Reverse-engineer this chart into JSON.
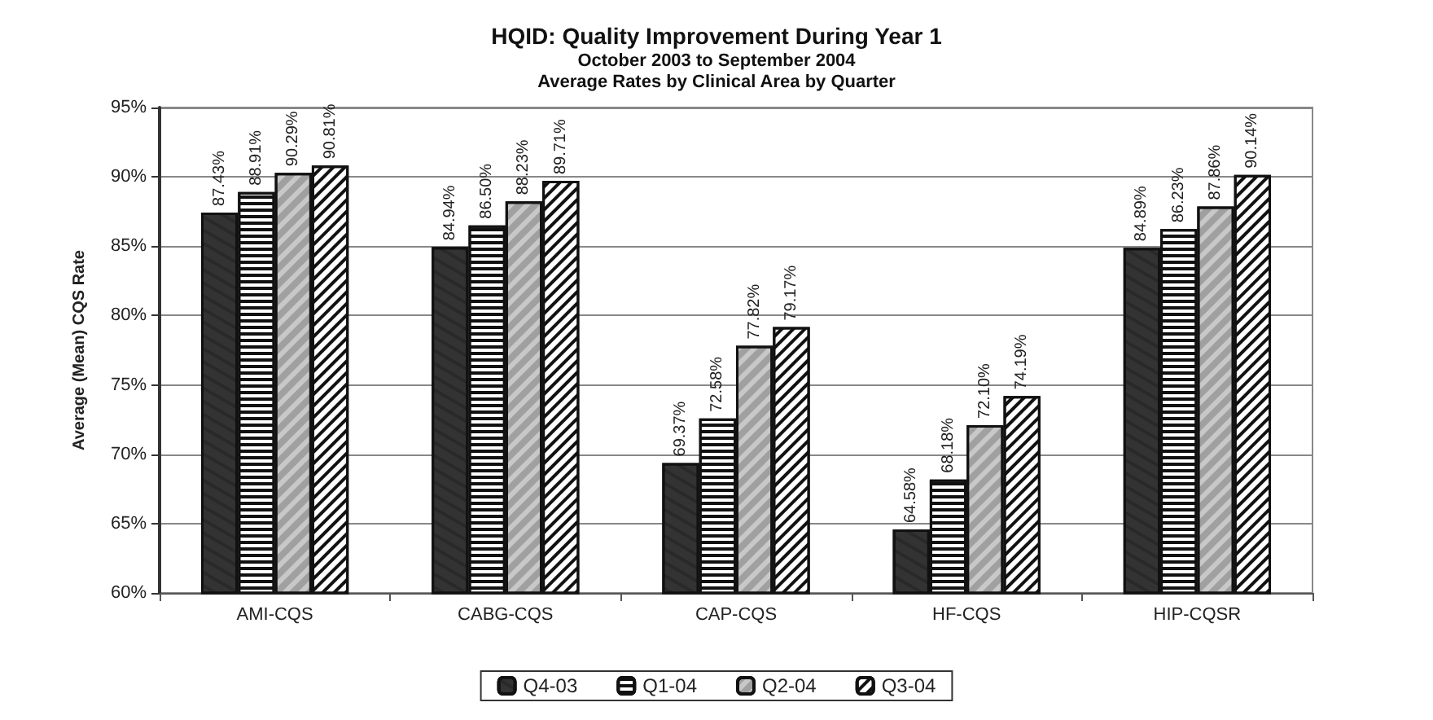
{
  "chart_data": {
    "type": "bar",
    "title": "HQID: Quality Improvement During Year 1",
    "subtitle": "October 2003 to September 2004\nAverage Rates by Clinical Area by Quarter",
    "ylabel": "Average (Mean) CQS Rate",
    "categories": [
      "AMI-CQS",
      "CABG-CQS",
      "CAP-CQS",
      "HF-CQS",
      "HIP-CQSR"
    ],
    "series": [
      {
        "name": "Q4-03",
        "color": "#333333",
        "values": [
          87.43,
          84.94,
          69.37,
          64.58,
          84.89
        ],
        "value_labels": [
          "87.43%",
          "84.94%",
          "69.37%",
          "64.58%",
          "84.89%"
        ]
      },
      {
        "name": "Q1-04",
        "color": "#ffffff",
        "values": [
          88.91,
          86.5,
          72.58,
          68.18,
          86.23
        ],
        "value_labels": [
          "88.91%",
          "86.50%",
          "72.58%",
          "68.18%",
          "86.23%"
        ]
      },
      {
        "name": "Q2-04",
        "color": "#c8c8c8",
        "values": [
          90.29,
          88.23,
          77.82,
          72.1,
          87.86
        ],
        "value_labels": [
          "90.29%",
          "88.23%",
          "77.82%",
          "72.10%",
          "87.86%"
        ]
      },
      {
        "name": "Q3-04",
        "color": "#ffffff",
        "values": [
          90.81,
          89.71,
          79.17,
          74.19,
          90.14
        ],
        "value_labels": [
          "90.81%",
          "89.71%",
          "79.17%",
          "74.19%",
          "90.14%"
        ]
      }
    ],
    "ylim": [
      60,
      95
    ],
    "yticks": [
      {
        "value": 60,
        "label": "60%"
      },
      {
        "value": 65,
        "label": "65%"
      },
      {
        "value": 70,
        "label": "70%"
      },
      {
        "value": 75,
        "label": "75%"
      },
      {
        "value": 80,
        "label": "80%"
      },
      {
        "value": 85,
        "label": "85%"
      },
      {
        "value": 90,
        "label": "90%"
      },
      {
        "value": 95,
        "label": "95%"
      }
    ],
    "grid": "y",
    "legend": "bottom"
  }
}
